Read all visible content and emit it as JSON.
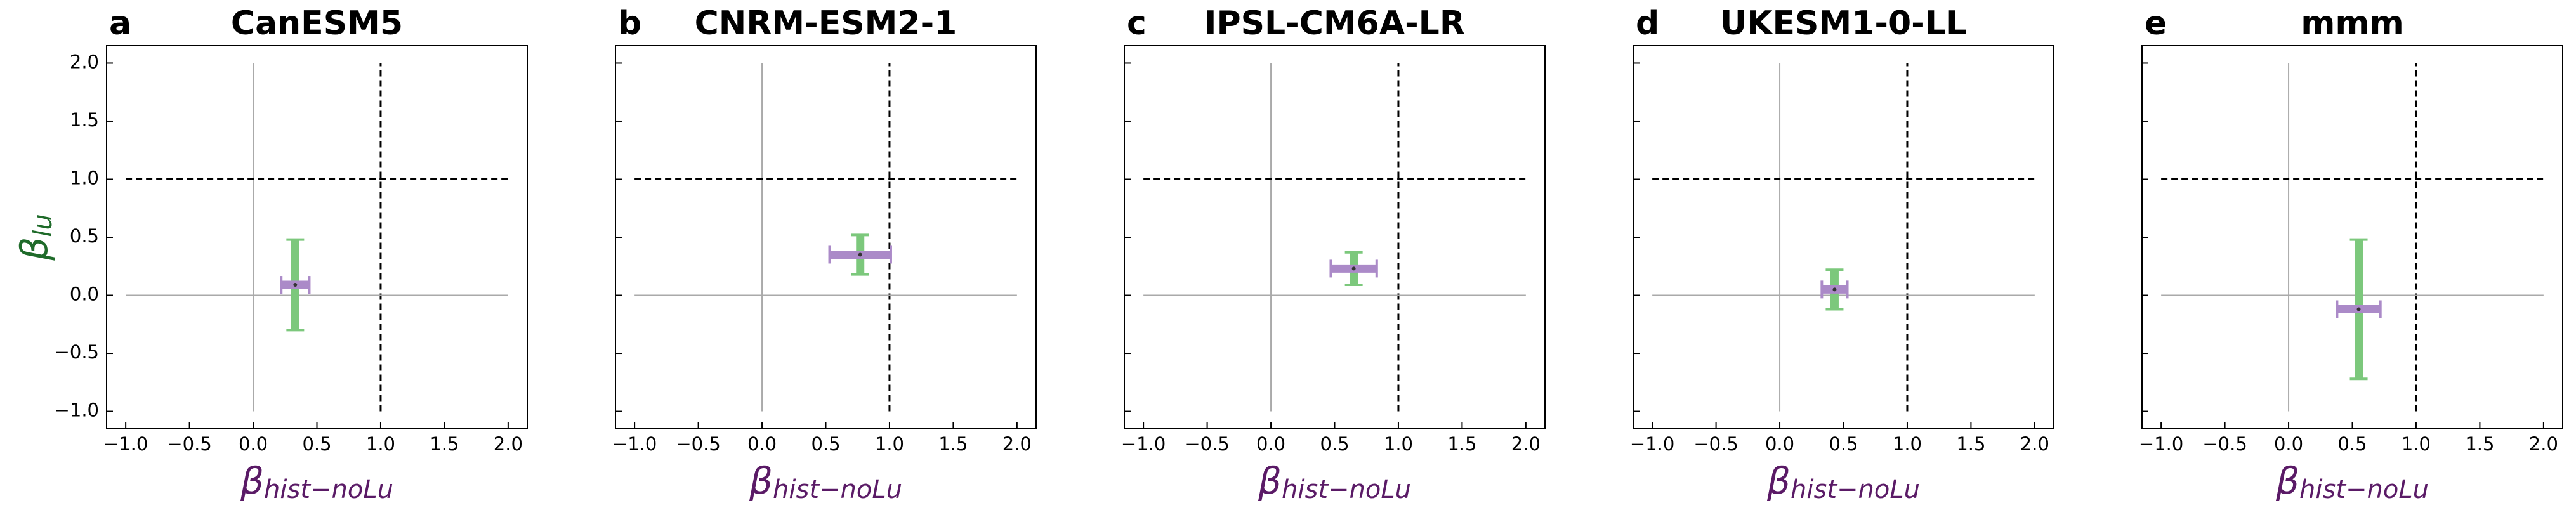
{
  "chart_data": [
    {
      "type": "errorbar",
      "panel_label": "a",
      "title": "CanESM5",
      "x_label": "β",
      "x_label_sub": "hist−noLu",
      "y_label": "β",
      "y_label_sub": "lu",
      "show_ytick_labels": true,
      "x": [
        0.33
      ],
      "values": [
        0.09
      ],
      "xerr": [
        0.11
      ],
      "yerr": [
        0.39
      ],
      "xerr_color": "#ab8ac8",
      "yerr_color": "#7cc87c",
      "center_color": "#333333",
      "x_label_color": "#5a1a66",
      "y_label_color": "#1f6b2a",
      "hlines": [
        {
          "y": 0,
          "style": "solid"
        },
        {
          "y": 1,
          "style": "dashed"
        }
      ],
      "vlines": [
        {
          "x": 0,
          "style": "solid"
        },
        {
          "x": 1,
          "style": "dashed"
        }
      ],
      "line_span": [
        -1,
        2
      ],
      "xlim": [
        -1.15,
        2.15
      ],
      "ylim": [
        -1.15,
        2.15
      ],
      "xticks": [
        {
          "value": -1,
          "label": "−1.0"
        },
        {
          "value": -0.5,
          "label": "−0.5"
        },
        {
          "value": 0,
          "label": "0.0"
        },
        {
          "value": 0.5,
          "label": "0.5"
        },
        {
          "value": 1,
          "label": "1.0"
        },
        {
          "value": 1.5,
          "label": "1.5"
        },
        {
          "value": 2,
          "label": "2.0"
        }
      ],
      "yticks": [
        {
          "value": -1,
          "label": "−1.0"
        },
        {
          "value": -0.5,
          "label": "−0.5"
        },
        {
          "value": 0,
          "label": "0.0"
        },
        {
          "value": 0.5,
          "label": "0.5"
        },
        {
          "value": 1,
          "label": "1.0"
        },
        {
          "value": 1.5,
          "label": "1.5"
        },
        {
          "value": 2,
          "label": "2.0"
        }
      ]
    },
    {
      "type": "errorbar",
      "panel_label": "b",
      "title": "CNRM-ESM2-1",
      "x_label": "β",
      "x_label_sub": "hist−noLu",
      "show_ytick_labels": false,
      "x": [
        0.77
      ],
      "values": [
        0.35
      ],
      "xerr": [
        0.24
      ],
      "yerr": [
        0.17
      ],
      "xerr_color": "#ab8ac8",
      "yerr_color": "#7cc87c",
      "center_color": "#333333",
      "x_label_color": "#5a1a66",
      "hlines": [
        {
          "y": 0,
          "style": "solid"
        },
        {
          "y": 1,
          "style": "dashed"
        }
      ],
      "vlines": [
        {
          "x": 0,
          "style": "solid"
        },
        {
          "x": 1,
          "style": "dashed"
        }
      ],
      "line_span": [
        -1,
        2
      ],
      "xlim": [
        -1.15,
        2.15
      ],
      "ylim": [
        -1.15,
        2.15
      ],
      "xticks": [
        {
          "value": -1,
          "label": "−1.0"
        },
        {
          "value": -0.5,
          "label": "−0.5"
        },
        {
          "value": 0,
          "label": "0.0"
        },
        {
          "value": 0.5,
          "label": "0.5"
        },
        {
          "value": 1,
          "label": "1.0"
        },
        {
          "value": 1.5,
          "label": "1.5"
        },
        {
          "value": 2,
          "label": "2.0"
        }
      ],
      "yticks": [
        -1,
        -0.5,
        0,
        0.5,
        1,
        1.5,
        2
      ]
    },
    {
      "type": "errorbar",
      "panel_label": "c",
      "title": "IPSL-CM6A-LR",
      "x_label": "β",
      "x_label_sub": "hist−noLu",
      "show_ytick_labels": false,
      "x": [
        0.65
      ],
      "values": [
        0.23
      ],
      "xerr": [
        0.18
      ],
      "yerr": [
        0.14
      ],
      "xerr_color": "#ab8ac8",
      "yerr_color": "#7cc87c",
      "center_color": "#333333",
      "x_label_color": "#5a1a66",
      "hlines": [
        {
          "y": 0,
          "style": "solid"
        },
        {
          "y": 1,
          "style": "dashed"
        }
      ],
      "vlines": [
        {
          "x": 0,
          "style": "solid"
        },
        {
          "x": 1,
          "style": "dashed"
        }
      ],
      "line_span": [
        -1,
        2
      ],
      "xlim": [
        -1.15,
        2.15
      ],
      "ylim": [
        -1.15,
        2.15
      ],
      "xticks": [
        {
          "value": -1,
          "label": "−1.0"
        },
        {
          "value": -0.5,
          "label": "−0.5"
        },
        {
          "value": 0,
          "label": "0.0"
        },
        {
          "value": 0.5,
          "label": "0.5"
        },
        {
          "value": 1,
          "label": "1.0"
        },
        {
          "value": 1.5,
          "label": "1.5"
        },
        {
          "value": 2,
          "label": "2.0"
        }
      ],
      "yticks": [
        -1,
        -0.5,
        0,
        0.5,
        1,
        1.5,
        2
      ]
    },
    {
      "type": "errorbar",
      "panel_label": "d",
      "title": "UKESM1-0-LL",
      "x_label": "β",
      "x_label_sub": "hist−noLu",
      "show_ytick_labels": false,
      "x": [
        0.43
      ],
      "values": [
        0.05
      ],
      "xerr": [
        0.1
      ],
      "yerr": [
        0.17
      ],
      "xerr_color": "#ab8ac8",
      "yerr_color": "#7cc87c",
      "center_color": "#333333",
      "x_label_color": "#5a1a66",
      "hlines": [
        {
          "y": 0,
          "style": "solid"
        },
        {
          "y": 1,
          "style": "dashed"
        }
      ],
      "vlines": [
        {
          "x": 0,
          "style": "solid"
        },
        {
          "x": 1,
          "style": "dashed"
        }
      ],
      "line_span": [
        -1,
        2
      ],
      "xlim": [
        -1.15,
        2.15
      ],
      "ylim": [
        -1.15,
        2.15
      ],
      "xticks": [
        {
          "value": -1,
          "label": "−1.0"
        },
        {
          "value": -0.5,
          "label": "−0.5"
        },
        {
          "value": 0,
          "label": "0.0"
        },
        {
          "value": 0.5,
          "label": "0.5"
        },
        {
          "value": 1,
          "label": "1.0"
        },
        {
          "value": 1.5,
          "label": "1.5"
        },
        {
          "value": 2,
          "label": "2.0"
        }
      ],
      "yticks": [
        -1,
        -0.5,
        0,
        0.5,
        1,
        1.5,
        2
      ]
    },
    {
      "type": "errorbar",
      "panel_label": "e",
      "title": "mmm",
      "x_label": "β",
      "x_label_sub": "hist−noLu",
      "show_ytick_labels": false,
      "x": [
        0.55
      ],
      "values": [
        -0.12
      ],
      "xerr": [
        0.17
      ],
      "yerr": [
        0.6
      ],
      "xerr_color": "#ab8ac8",
      "yerr_color": "#7cc87c",
      "center_color": "#333333",
      "x_label_color": "#5a1a66",
      "hlines": [
        {
          "y": 0,
          "style": "solid"
        },
        {
          "y": 1,
          "style": "dashed"
        }
      ],
      "vlines": [
        {
          "x": 0,
          "style": "solid"
        },
        {
          "x": 1,
          "style": "dashed"
        }
      ],
      "line_span": [
        -1,
        2
      ],
      "xlim": [
        -1.15,
        2.15
      ],
      "ylim": [
        -1.15,
        2.15
      ],
      "xticks": [
        {
          "value": -1,
          "label": "−1.0"
        },
        {
          "value": -0.5,
          "label": "−0.5"
        },
        {
          "value": 0,
          "label": "0.0"
        },
        {
          "value": 0.5,
          "label": "0.5"
        },
        {
          "value": 1,
          "label": "1.0"
        },
        {
          "value": 1.5,
          "label": "1.5"
        },
        {
          "value": 2,
          "label": "2.0"
        }
      ],
      "yticks": [
        -1,
        -0.5,
        0,
        0.5,
        1,
        1.5,
        2
      ]
    }
  ]
}
